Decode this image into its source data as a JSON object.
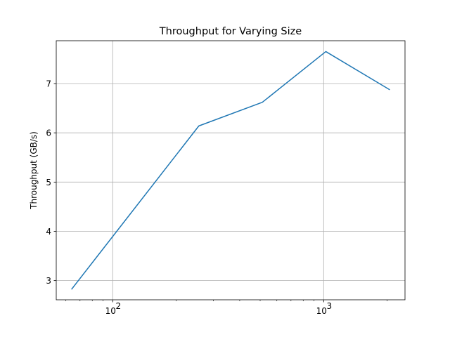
{
  "chart_data": {
    "type": "line",
    "title": "Throughput for Varying Size",
    "xlabel": "",
    "ylabel": "Throughput (GB/s)",
    "xscale": "log",
    "xlim": [
      54,
      2430
    ],
    "ylim": [
      2.61,
      7.87
    ],
    "grid": true,
    "x_major_ticks": [
      {
        "value": 100,
        "label_base": "10",
        "label_exp": "2"
      },
      {
        "value": 1000,
        "label_base": "10",
        "label_exp": "3"
      }
    ],
    "y_ticks": [
      3,
      4,
      5,
      6,
      7
    ],
    "line_color": "#1f77b4",
    "series": [
      {
        "x": [
          64,
          256,
          512,
          1024,
          2048
        ],
        "y": [
          2.83,
          6.14,
          6.62,
          7.65,
          6.88
        ]
      }
    ]
  }
}
